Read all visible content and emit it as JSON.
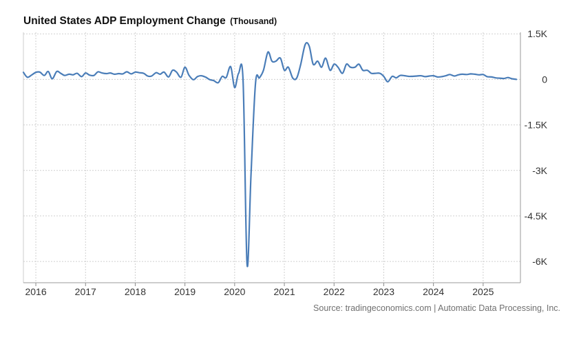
{
  "chart_data": {
    "type": "line",
    "title": "United States ADP Employment Change",
    "unit": "(Thousand)",
    "source": "Source: tradingeconomics.com | Automatic Data Processing, Inc.",
    "xlabel": "",
    "ylabel": "",
    "x_range": [
      2015.75,
      2025.75
    ],
    "ylim": [
      -6.7,
      1.55
    ],
    "y_ticks": [
      {
        "value": 1.5,
        "label": "1.5K"
      },
      {
        "value": 0,
        "label": "0"
      },
      {
        "value": -1.5,
        "label": "-1.5K"
      },
      {
        "value": -3,
        "label": "-3K"
      },
      {
        "value": -4.5,
        "label": "-4.5K"
      },
      {
        "value": -6,
        "label": "-6K"
      }
    ],
    "x_ticks": [
      {
        "value": 2016,
        "label": "2016"
      },
      {
        "value": 2017,
        "label": "2017"
      },
      {
        "value": 2018,
        "label": "2018"
      },
      {
        "value": 2019,
        "label": "2019"
      },
      {
        "value": 2020,
        "label": "2020"
      },
      {
        "value": 2021,
        "label": "2021"
      },
      {
        "value": 2022,
        "label": "2022"
      },
      {
        "value": 2023,
        "label": "2023"
      },
      {
        "value": 2024,
        "label": "2024"
      },
      {
        "value": 2025,
        "label": "2025"
      }
    ],
    "grid": true,
    "line_color": "#4a7db8",
    "series": [
      {
        "x": [
          2015.75,
          2015.83,
          2015.92,
          2016.0,
          2016.08,
          2016.17,
          2016.25,
          2016.33,
          2016.42,
          2016.5,
          2016.58,
          2016.67,
          2016.75,
          2016.83,
          2016.92,
          2017.0,
          2017.08,
          2017.17,
          2017.25,
          2017.33,
          2017.42,
          2017.5,
          2017.58,
          2017.67,
          2017.75,
          2017.83,
          2017.92,
          2018.0,
          2018.08,
          2018.17,
          2018.25,
          2018.33,
          2018.42,
          2018.5,
          2018.58,
          2018.67,
          2018.75,
          2018.83,
          2018.92,
          2019.0,
          2019.08,
          2019.17,
          2019.25,
          2019.33,
          2019.42,
          2019.5,
          2019.58,
          2019.67,
          2019.75,
          2019.83,
          2019.92,
          2020.0,
          2020.08,
          2020.17,
          2020.25,
          2020.33,
          2020.42,
          2020.5,
          2020.58,
          2020.67,
          2020.75,
          2020.83,
          2020.92,
          2021.0,
          2021.08,
          2021.17,
          2021.25,
          2021.33,
          2021.42,
          2021.5,
          2021.58,
          2021.67,
          2021.75,
          2021.83,
          2021.92,
          2022.0,
          2022.08,
          2022.17,
          2022.25,
          2022.33,
          2022.42,
          2022.5,
          2022.58,
          2022.67,
          2022.75,
          2022.83,
          2022.92,
          2023.0,
          2023.08,
          2023.17,
          2023.25,
          2023.33,
          2023.42,
          2023.5,
          2023.58,
          2023.67,
          2023.75,
          2023.83,
          2023.92,
          2024.0,
          2024.08,
          2024.17,
          2024.25,
          2024.33,
          2024.42,
          2024.5,
          2024.58,
          2024.67,
          2024.75,
          2024.83,
          2024.92,
          2025.0,
          2025.08,
          2025.17,
          2025.25,
          2025.33,
          2025.42,
          2025.5,
          2025.58,
          2025.67
        ],
        "y": [
          0.23,
          0.07,
          0.15,
          0.23,
          0.24,
          0.13,
          0.26,
          0.02,
          0.26,
          0.2,
          0.13,
          0.17,
          0.15,
          0.2,
          0.09,
          0.21,
          0.14,
          0.13,
          0.25,
          0.21,
          0.19,
          0.21,
          0.17,
          0.19,
          0.18,
          0.25,
          0.18,
          0.24,
          0.22,
          0.2,
          0.11,
          0.11,
          0.22,
          0.17,
          0.24,
          0.08,
          0.3,
          0.24,
          0.07,
          0.4,
          0.14,
          -0.01,
          0.09,
          0.12,
          0.07,
          -0.01,
          -0.04,
          -0.11,
          0.1,
          0.06,
          0.42,
          -0.27,
          0.2,
          -0.05,
          -6.1,
          -3.1,
          -0.12,
          0.05,
          0.3,
          0.9,
          0.6,
          0.6,
          0.7,
          0.3,
          0.4,
          0.04,
          0.05,
          0.5,
          1.15,
          1.1,
          0.5,
          0.6,
          0.4,
          0.7,
          0.3,
          0.5,
          0.4,
          0.2,
          0.5,
          0.4,
          0.4,
          0.5,
          0.3,
          0.3,
          0.2,
          0.2,
          0.2,
          0.1,
          -0.08,
          0.1,
          0.05,
          0.13,
          0.12,
          0.1,
          0.1,
          0.11,
          0.12,
          0.09,
          0.11,
          0.12,
          0.08,
          0.09,
          0.12,
          0.16,
          0.11,
          0.15,
          0.17,
          0.16,
          0.18,
          0.17,
          0.15,
          0.16,
          0.09,
          0.08,
          0.05,
          0.04,
          0.03,
          0.06,
          0.02,
          0.0
        ]
      }
    ]
  }
}
